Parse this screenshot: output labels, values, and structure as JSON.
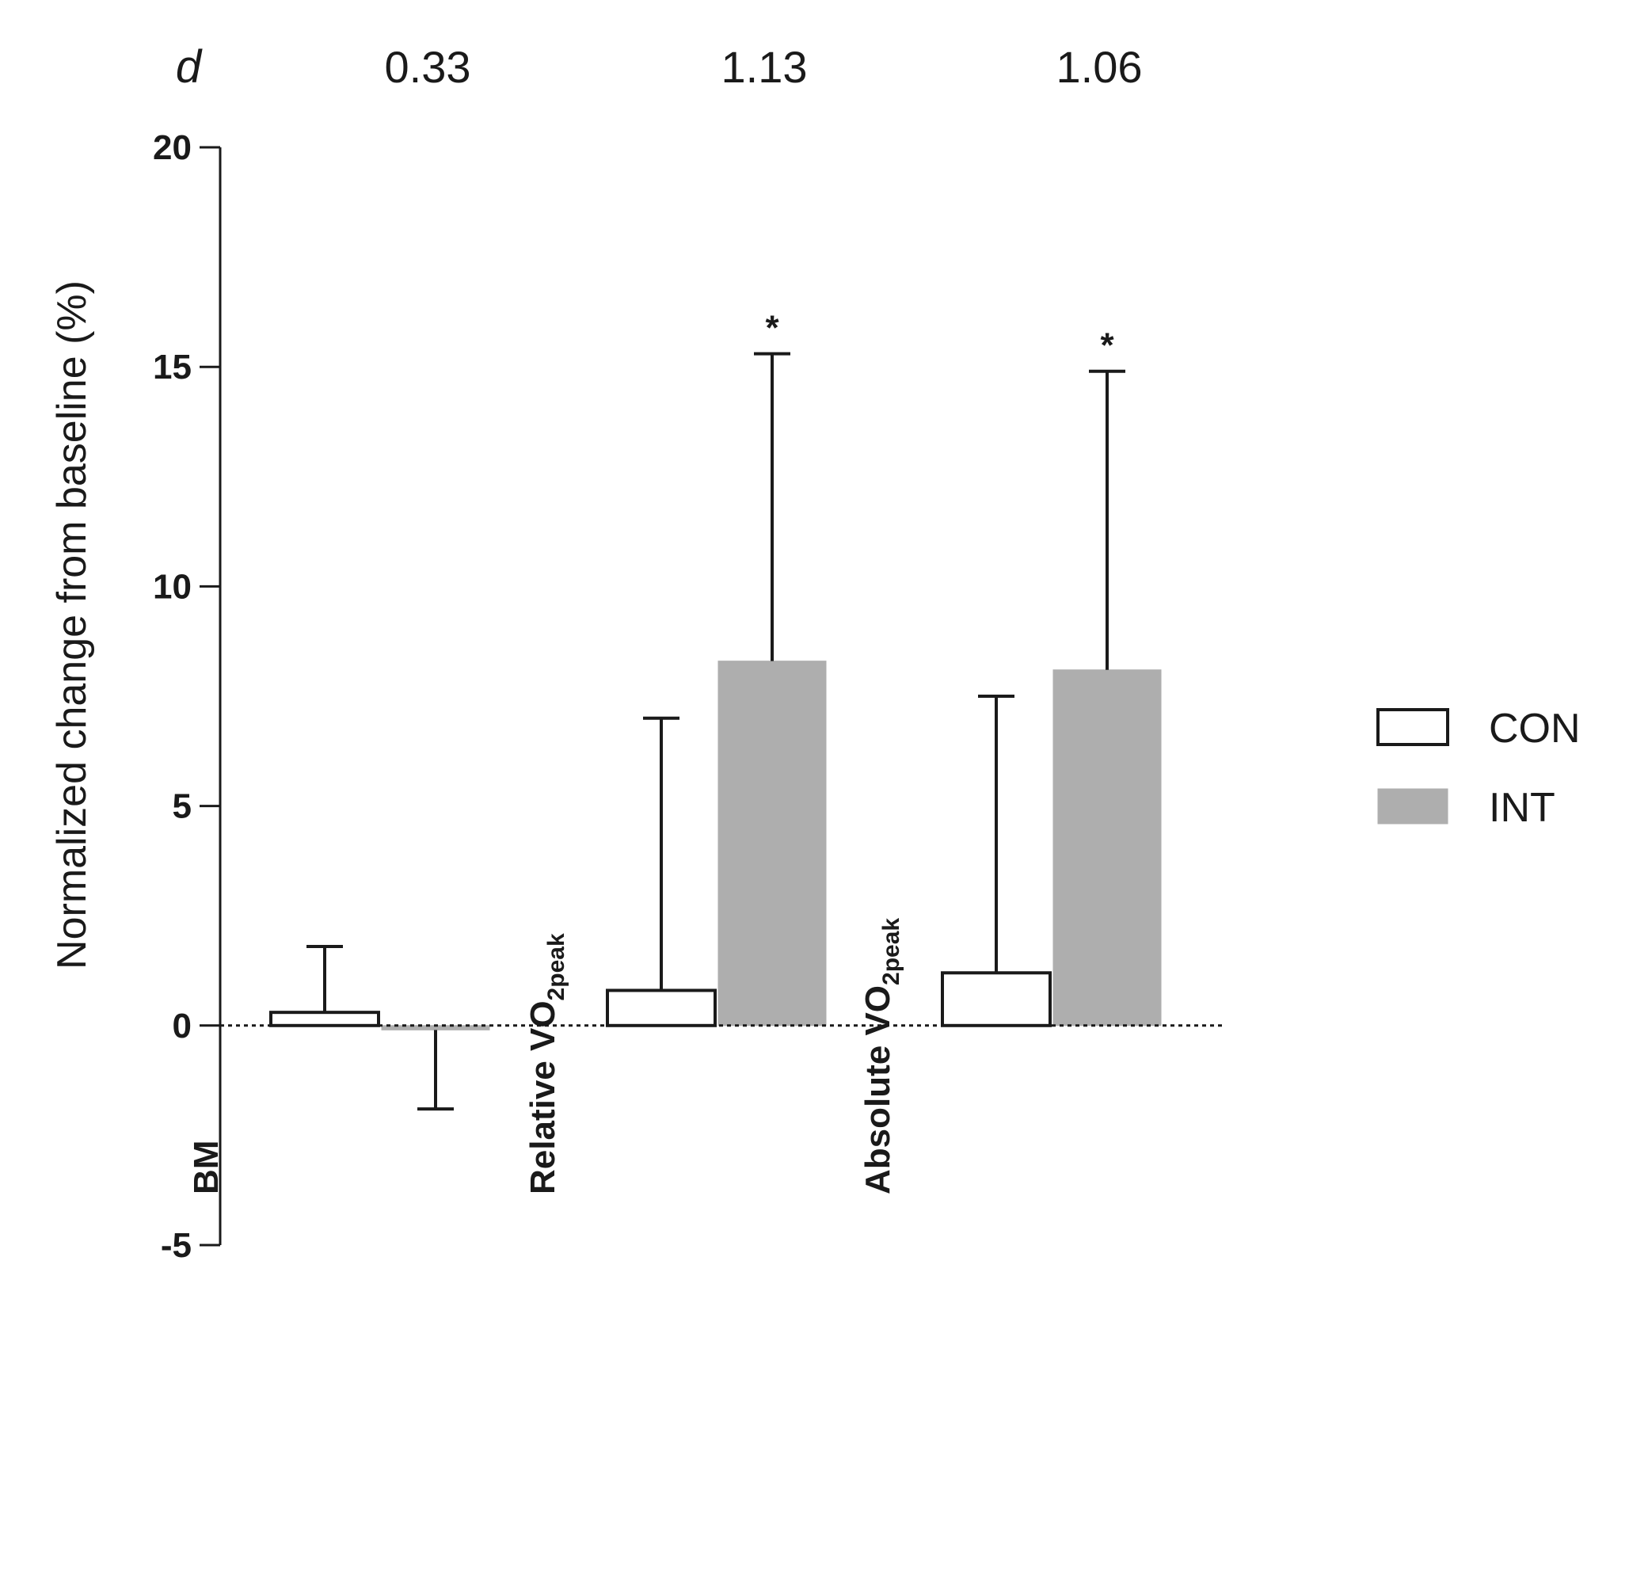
{
  "chart_data": {
    "type": "bar",
    "title": "",
    "xlabel": "",
    "ylabel": "Normalized change from baseline (%)",
    "ylim": [
      -5,
      20
    ],
    "yticks": [
      20,
      15,
      10,
      5,
      0,
      -5
    ],
    "reference_line": 0,
    "categories": [
      {
        "label": "BM",
        "main": "BM",
        "sub": "",
        "tail": ""
      },
      {
        "label": "Relative VO2peak",
        "main": "Relative VO",
        "sub": "2peak",
        "tail": ""
      },
      {
        "label": "Absolute VO2peak",
        "main": "Absolute VO",
        "sub": "2peak",
        "tail": ""
      }
    ],
    "effect_size": {
      "symbol": "d",
      "values": [
        "0.33",
        "1.13",
        "1.06"
      ]
    },
    "series": [
      {
        "name": "CON",
        "fill": "#ffffff",
        "stroke": "#1a1a1a",
        "values": [
          0.3,
          0.8,
          1.2
        ],
        "sd": [
          1.5,
          6.2,
          6.3
        ]
      },
      {
        "name": "INT",
        "fill": "#aeaeae",
        "stroke": "#aeaeae",
        "values": [
          -0.1,
          8.3,
          8.1
        ],
        "sd": [
          1.8,
          7.0,
          6.8
        ]
      }
    ],
    "significance": [
      {
        "category": 1,
        "series": 1,
        "marker": "*"
      },
      {
        "category": 2,
        "series": 1,
        "marker": "*"
      }
    ],
    "legend": {
      "position": "right",
      "items": [
        "CON",
        "INT"
      ]
    }
  }
}
